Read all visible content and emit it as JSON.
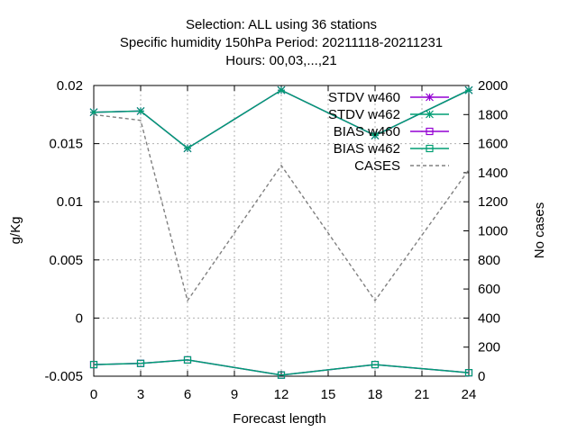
{
  "chart_data": {
    "type": "line",
    "title_lines": [
      "Selection: ALL using    36 stations",
      "Specific humidity 150hPa   Period: 20211118-20211231",
      "Hours:  00,03,...,21"
    ],
    "xlabel": "Forecast length",
    "ylabel": "g/Kg",
    "y2label": "No cases",
    "x": [
      0,
      6,
      12,
      18,
      24
    ],
    "x_ticks": [
      0,
      3,
      6,
      9,
      12,
      15,
      18,
      21,
      24
    ],
    "xlim": [
      0,
      24
    ],
    "ylim": [
      -0.005,
      0.02
    ],
    "y_ticks": [
      -0.005,
      0,
      0.005,
      0.01,
      0.015,
      0.02
    ],
    "y_tick_labels": [
      "-0.005",
      "0",
      "0.005",
      "0.01",
      "0.015",
      "0.02"
    ],
    "y2lim": [
      0,
      2000
    ],
    "y2_ticks": [
      0,
      200,
      400,
      600,
      800,
      1000,
      1200,
      1400,
      1600,
      1800,
      2000
    ],
    "grid": true,
    "legend_position": "top-right",
    "series": [
      {
        "name": "STDV w460",
        "axis": "y",
        "style": "solid",
        "marker": "star",
        "color": "#9400d3",
        "x": [
          0,
          3,
          6,
          12,
          18,
          24
        ],
        "values": [
          0.0177,
          0.0178,
          0.0146,
          0.0196,
          0.0157,
          0.0196
        ]
      },
      {
        "name": "STDV w462",
        "axis": "y",
        "style": "solid",
        "marker": "star",
        "color": "#009e73",
        "x": [
          0,
          3,
          6,
          12,
          18,
          24
        ],
        "values": [
          0.0177,
          0.0178,
          0.0146,
          0.0196,
          0.0157,
          0.0196
        ]
      },
      {
        "name": "BIAS w460",
        "axis": "y",
        "style": "solid",
        "marker": "square",
        "color": "#9400d3",
        "x": [
          0,
          3,
          6,
          12,
          18,
          24
        ],
        "values": [
          -0.004,
          -0.0039,
          -0.0036,
          -0.0049,
          -0.004,
          -0.0047
        ]
      },
      {
        "name": "BIAS w462",
        "axis": "y",
        "style": "solid",
        "marker": "square",
        "color": "#009e73",
        "x": [
          0,
          3,
          6,
          12,
          18,
          24
        ],
        "values": [
          -0.004,
          -0.0039,
          -0.0036,
          -0.0049,
          -0.004,
          -0.0047
        ]
      },
      {
        "name": "CASES",
        "axis": "y2",
        "style": "dashed",
        "marker": "none",
        "color": "#808080",
        "x": [
          0,
          3,
          6,
          12,
          18,
          24
        ],
        "values": [
          1800,
          1760,
          520,
          1450,
          520,
          1420
        ]
      }
    ]
  }
}
